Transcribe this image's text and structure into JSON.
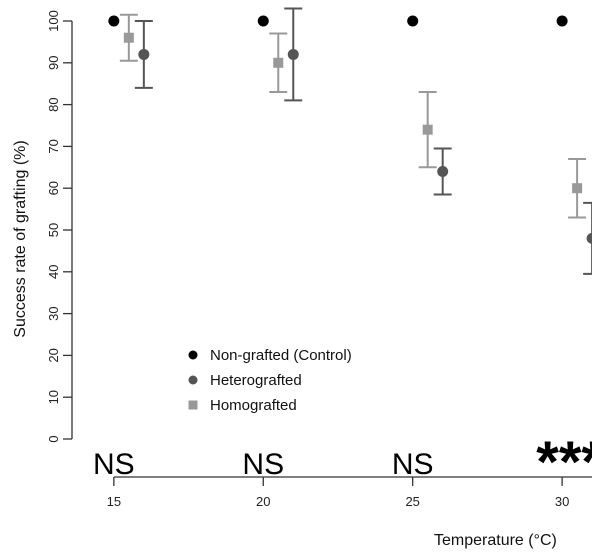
{
  "chart_data": {
    "type": "scatter",
    "xlabel": "Temperature (°C)",
    "ylabel": "Success rate of grafting (%)",
    "x_ticks": [
      "15",
      "20",
      "25",
      "30"
    ],
    "y_ticks": [
      "0",
      "10",
      "20",
      "30",
      "40",
      "50",
      "60",
      "70",
      "80",
      "90",
      "100"
    ],
    "xlim": [
      13.6,
      31.0
    ],
    "ylim": [
      0,
      100
    ],
    "grid": false,
    "legend_position": "bottom-left",
    "series": [
      {
        "name": "Non-grafted (Control)",
        "marker": "circle",
        "color": "#000000",
        "points": [
          {
            "x": 15,
            "y": 100
          },
          {
            "x": 20,
            "y": 100
          },
          {
            "x": 25,
            "y": 100
          },
          {
            "x": 30,
            "y": 100
          }
        ]
      },
      {
        "name": "Heterografted",
        "marker": "circle",
        "color": "#555555",
        "points": [
          {
            "x": 15,
            "y": 92,
            "low": 84,
            "high": 100
          },
          {
            "x": 20,
            "y": 92,
            "low": 81,
            "high": 103
          },
          {
            "x": 25,
            "y": 64,
            "low": 58.5,
            "high": 69.5
          },
          {
            "x": 30,
            "y": 48,
            "low": 39.5,
            "high": 56.5
          }
        ]
      },
      {
        "name": "Homografted",
        "marker": "square",
        "color": "#999999",
        "points": [
          {
            "x": 15,
            "y": 96,
            "low": 90.5,
            "high": 101.5
          },
          {
            "x": 20,
            "y": 90,
            "low": 83,
            "high": 97
          },
          {
            "x": 25,
            "y": 74,
            "low": 65,
            "high": 83
          },
          {
            "x": 30,
            "y": 60,
            "low": 53,
            "high": 67
          }
        ]
      }
    ],
    "annotations": [
      {
        "x": 15,
        "text": "NS"
      },
      {
        "x": 20,
        "text": "NS"
      },
      {
        "x": 25,
        "text": "NS"
      },
      {
        "x": 30,
        "text": "***"
      }
    ]
  }
}
